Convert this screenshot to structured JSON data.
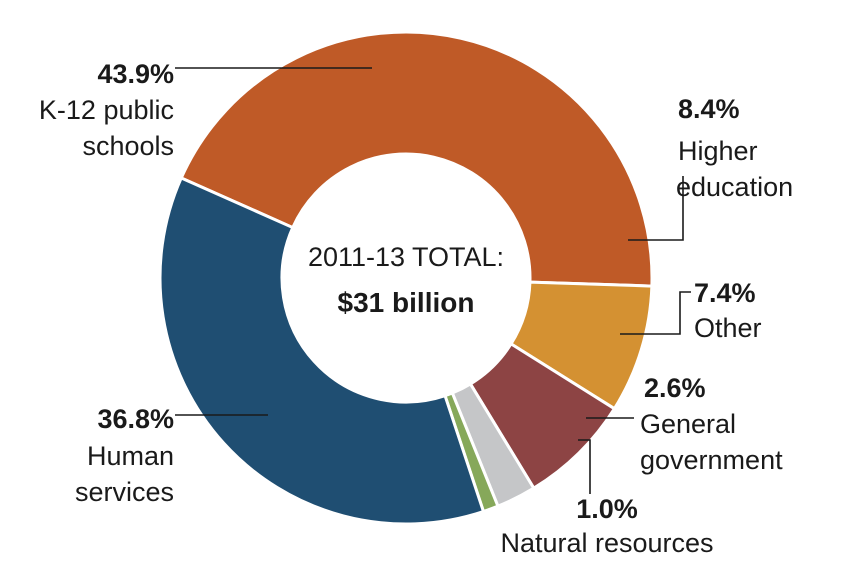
{
  "chart_data": {
    "type": "pie",
    "center_label_line1": "2011-13 TOTAL:",
    "center_label_line2": "$31 billion",
    "slices": [
      {
        "pct_label": "43.9%",
        "label_lines": [
          "K-12 public",
          "schools"
        ],
        "value": 43.9,
        "color": "#bf5a27"
      },
      {
        "pct_label": "8.4%",
        "label_lines": [
          "Higher",
          "education"
        ],
        "value": 8.4,
        "color": "#d49132"
      },
      {
        "pct_label": "7.4%",
        "label_lines": [
          "Other"
        ],
        "value": 7.4,
        "color": "#8d4444"
      },
      {
        "pct_label": "2.6%",
        "label_lines": [
          "General",
          "government"
        ],
        "value": 2.6,
        "color": "#c5c6c8"
      },
      {
        "pct_label": "1.0%",
        "label_lines": [
          "Natural resources"
        ],
        "value": 1.0,
        "color": "#86a85a"
      },
      {
        "pct_label": "36.8%",
        "label_lines": [
          "Human",
          "services"
        ],
        "value": 36.8,
        "color": "#1f4e72"
      }
    ]
  }
}
